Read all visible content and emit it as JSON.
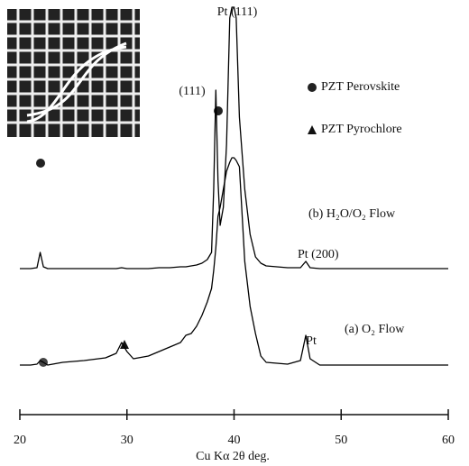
{
  "chart_data": {
    "type": "line",
    "xlabel": "Cu Kα 2θ deg.",
    "annotations": [
      "Pt (111)",
      "(111)",
      "PZT Perovskite",
      "PZT Pyrochlore",
      "Pt (200)",
      "Pt"
    ],
    "x": [
      20,
      21,
      21.6,
      21.9,
      22.2,
      22.6,
      24,
      26,
      28,
      29,
      29.5,
      30,
      30.6,
      32,
      33,
      34,
      35,
      35.5,
      36,
      36.5,
      37,
      37.5,
      37.9,
      38.1,
      38.3,
      38.5,
      38.7,
      39,
      39.3,
      39.6,
      39.8,
      40,
      40.2,
      40.5,
      41,
      41.5,
      42,
      42.5,
      43,
      45,
      46.2,
      46.7,
      47.1,
      48,
      52,
      56,
      60
    ],
    "series": [
      {
        "name": "(b) H₂O/O₂ Flow",
        "color": "#000000",
        "values": [
          162,
          162,
          163,
          180,
          164,
          162,
          162,
          162,
          162,
          162,
          163,
          162,
          162,
          162,
          163,
          163,
          164,
          164,
          165,
          166,
          168,
          172,
          180,
          250,
          360,
          260,
          210,
          230,
          300,
          440,
          452,
          452,
          440,
          330,
          250,
          200,
          175,
          168,
          165,
          163,
          163,
          170,
          163,
          162,
          162,
          162,
          162
        ]
      },
      {
        "name": "(a) O₂ Flow",
        "color": "#000000",
        "values": [
          55,
          55,
          56,
          60,
          58,
          55,
          58,
          60,
          63,
          68,
          80,
          70,
          62,
          65,
          70,
          75,
          80,
          88,
          90,
          98,
          110,
          125,
          140,
          160,
          185,
          220,
          230,
          250,
          270,
          280,
          285,
          285,
          282,
          275,
          170,
          120,
          90,
          65,
          58,
          56,
          60,
          88,
          62,
          55,
          55,
          55,
          55
        ]
      }
    ],
    "xlim": [
      20,
      60
    ],
    "xticks": [
      20,
      30,
      40,
      50,
      60
    ],
    "ylim": [
      0,
      460
    ]
  }
}
